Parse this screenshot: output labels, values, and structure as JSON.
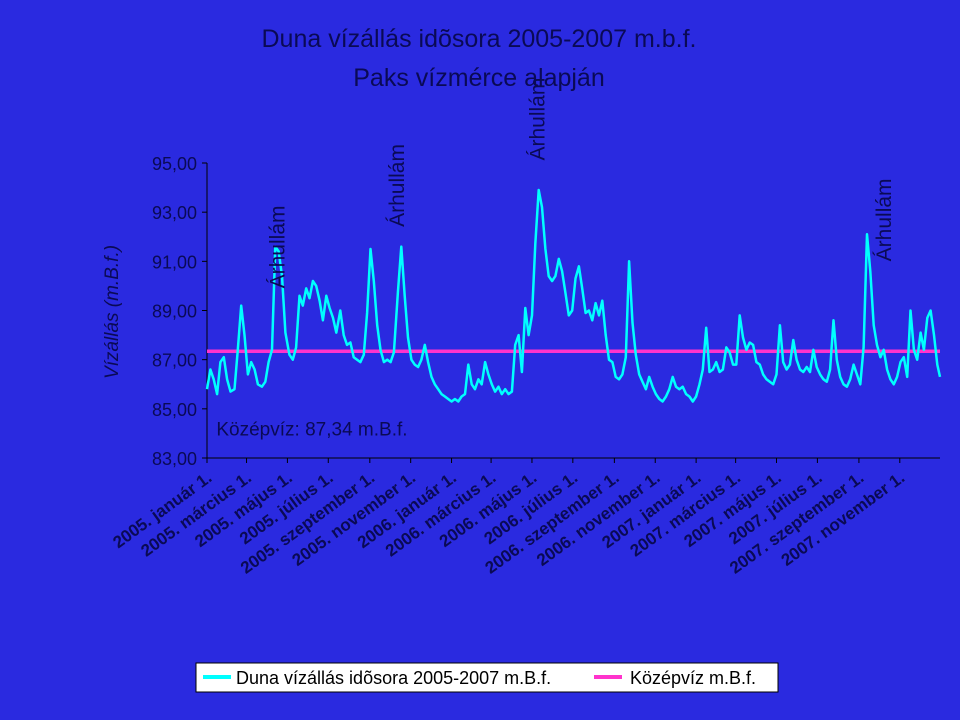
{
  "chart_data": {
    "type": "line",
    "title": "Duna vízállás idõsora 2005-2007 m.b.f.",
    "subtitle": "Paks vízmérce alapján",
    "ylabel": "Vízállás (m.B.f.)",
    "xlabel": "",
    "ylim": [
      83,
      95
    ],
    "y_ticks": [
      83,
      85,
      87,
      89,
      91,
      93,
      95
    ],
    "y_tick_labels": [
      "83,00",
      "85,00",
      "87,00",
      "89,00",
      "91,00",
      "93,00",
      "95,00"
    ],
    "x_range": [
      "2005-01-01",
      "2007-12-31"
    ],
    "x_tick_labels": [
      {
        "date": "2005-01-01",
        "label": "2005. január 1."
      },
      {
        "date": "2005-03-01",
        "label": "2005. március 1."
      },
      {
        "date": "2005-05-01",
        "label": "2005. május 1."
      },
      {
        "date": "2005-07-01",
        "label": "2005. július 1."
      },
      {
        "date": "2005-09-01",
        "label": "2005. szeptember 1."
      },
      {
        "date": "2005-11-01",
        "label": "2005. november 1."
      },
      {
        "date": "2006-01-01",
        "label": "2006. január 1."
      },
      {
        "date": "2006-03-01",
        "label": "2006. március 1."
      },
      {
        "date": "2006-05-01",
        "label": "2006. május 1."
      },
      {
        "date": "2006-07-01",
        "label": "2006. július 1."
      },
      {
        "date": "2006-09-01",
        "label": "2006. szeptember 1."
      },
      {
        "date": "2006-11-01",
        "label": "2006. november 1."
      },
      {
        "date": "2007-01-01",
        "label": "2007. január 1."
      },
      {
        "date": "2007-03-01",
        "label": "2007. március 1."
      },
      {
        "date": "2007-05-01",
        "label": "2007. május 1."
      },
      {
        "date": "2007-07-01",
        "label": "2007. július 1."
      },
      {
        "date": "2007-09-01",
        "label": "2007. szeptember 1."
      },
      {
        "date": "2007-11-01",
        "label": "2007. november 1."
      }
    ],
    "grid": false,
    "legend_position": "bottom",
    "series": [
      {
        "name": "Duna vízállás idõsora 2005-2007 m.B.f.",
        "color": "#00ffff",
        "points": [
          [
            "2005-01-01",
            85.8
          ],
          [
            "2005-01-06",
            86.6
          ],
          [
            "2005-01-11",
            86.2
          ],
          [
            "2005-01-16",
            85.6
          ],
          [
            "2005-01-21",
            86.9
          ],
          [
            "2005-01-26",
            87.1
          ],
          [
            "2005-01-31",
            86.2
          ],
          [
            "2005-02-05",
            85.7
          ],
          [
            "2005-02-11",
            85.8
          ],
          [
            "2005-02-16",
            87.4
          ],
          [
            "2005-02-21",
            89.2
          ],
          [
            "2005-02-26",
            88.0
          ],
          [
            "2005-03-03",
            86.4
          ],
          [
            "2005-03-08",
            86.9
          ],
          [
            "2005-03-13",
            86.6
          ],
          [
            "2005-03-18",
            86.0
          ],
          [
            "2005-03-24",
            85.9
          ],
          [
            "2005-03-29",
            86.1
          ],
          [
            "2005-04-03",
            86.9
          ],
          [
            "2005-04-08",
            87.4
          ],
          [
            "2005-04-13",
            91.6
          ],
          [
            "2005-04-18",
            91.4
          ],
          [
            "2005-04-23",
            90.4
          ],
          [
            "2005-04-28",
            88.1
          ],
          [
            "2005-05-04",
            87.2
          ],
          [
            "2005-05-09",
            87.0
          ],
          [
            "2005-05-14",
            87.5
          ],
          [
            "2005-05-19",
            89.6
          ],
          [
            "2005-05-24",
            89.2
          ],
          [
            "2005-05-29",
            89.9
          ],
          [
            "2005-06-03",
            89.5
          ],
          [
            "2005-06-08",
            90.2
          ],
          [
            "2005-06-13",
            90.0
          ],
          [
            "2005-06-18",
            89.4
          ],
          [
            "2005-06-23",
            88.6
          ],
          [
            "2005-06-28",
            89.6
          ],
          [
            "2005-07-03",
            89.1
          ],
          [
            "2005-07-08",
            88.7
          ],
          [
            "2005-07-13",
            88.1
          ],
          [
            "2005-07-19",
            89.0
          ],
          [
            "2005-07-24",
            88.0
          ],
          [
            "2005-07-29",
            87.6
          ],
          [
            "2005-08-03",
            87.7
          ],
          [
            "2005-08-08",
            87.1
          ],
          [
            "2005-08-13",
            87.0
          ],
          [
            "2005-08-18",
            86.9
          ],
          [
            "2005-08-23",
            87.2
          ],
          [
            "2005-08-28",
            88.9
          ],
          [
            "2005-09-02",
            91.5
          ],
          [
            "2005-09-07",
            90.2
          ],
          [
            "2005-09-12",
            88.4
          ],
          [
            "2005-09-17",
            87.4
          ],
          [
            "2005-09-22",
            86.9
          ],
          [
            "2005-09-27",
            87.0
          ],
          [
            "2005-10-02",
            86.9
          ],
          [
            "2005-10-07",
            87.3
          ],
          [
            "2005-10-13",
            89.8
          ],
          [
            "2005-10-18",
            91.6
          ],
          [
            "2005-10-23",
            89.6
          ],
          [
            "2005-10-28",
            87.9
          ],
          [
            "2005-11-02",
            87.0
          ],
          [
            "2005-11-07",
            86.8
          ],
          [
            "2005-11-12",
            86.7
          ],
          [
            "2005-11-17",
            87.0
          ],
          [
            "2005-11-22",
            87.6
          ],
          [
            "2005-11-27",
            86.9
          ],
          [
            "2005-12-02",
            86.3
          ],
          [
            "2005-12-07",
            86.0
          ],
          [
            "2005-12-12",
            85.8
          ],
          [
            "2005-12-17",
            85.6
          ],
          [
            "2005-12-22",
            85.5
          ],
          [
            "2005-12-27",
            85.4
          ],
          [
            "2006-01-01",
            85.3
          ],
          [
            "2006-01-06",
            85.4
          ],
          [
            "2006-01-11",
            85.3
          ],
          [
            "2006-01-16",
            85.5
          ],
          [
            "2006-01-21",
            85.6
          ],
          [
            "2006-01-26",
            86.8
          ],
          [
            "2006-01-31",
            86.0
          ],
          [
            "2006-02-05",
            85.8
          ],
          [
            "2006-02-10",
            86.2
          ],
          [
            "2006-02-15",
            86.0
          ],
          [
            "2006-02-20",
            86.9
          ],
          [
            "2006-02-25",
            86.4
          ],
          [
            "2006-03-02",
            86.0
          ],
          [
            "2006-03-07",
            85.7
          ],
          [
            "2006-03-12",
            85.9
          ],
          [
            "2006-03-17",
            85.6
          ],
          [
            "2006-03-22",
            85.8
          ],
          [
            "2006-03-27",
            85.6
          ],
          [
            "2006-04-01",
            85.7
          ],
          [
            "2006-04-06",
            87.6
          ],
          [
            "2006-04-11",
            88.0
          ],
          [
            "2006-04-16",
            86.5
          ],
          [
            "2006-04-21",
            89.1
          ],
          [
            "2006-04-26",
            88.0
          ],
          [
            "2006-05-01",
            88.8
          ],
          [
            "2006-05-06",
            91.7
          ],
          [
            "2006-05-11",
            93.9
          ],
          [
            "2006-05-16",
            93.2
          ],
          [
            "2006-05-21",
            91.5
          ],
          [
            "2006-05-26",
            90.4
          ],
          [
            "2006-05-31",
            90.2
          ],
          [
            "2006-06-05",
            90.4
          ],
          [
            "2006-06-10",
            91.1
          ],
          [
            "2006-06-15",
            90.6
          ],
          [
            "2006-06-20",
            89.7
          ],
          [
            "2006-06-25",
            88.8
          ],
          [
            "2006-06-30",
            89.0
          ],
          [
            "2006-07-05",
            90.3
          ],
          [
            "2006-07-10",
            90.8
          ],
          [
            "2006-07-15",
            89.9
          ],
          [
            "2006-07-20",
            88.9
          ],
          [
            "2006-07-25",
            89.0
          ],
          [
            "2006-07-30",
            88.6
          ],
          [
            "2006-08-04",
            89.3
          ],
          [
            "2006-08-09",
            88.8
          ],
          [
            "2006-08-14",
            89.4
          ],
          [
            "2006-08-19",
            88.0
          ],
          [
            "2006-08-24",
            87.0
          ],
          [
            "2006-08-29",
            86.9
          ],
          [
            "2006-09-03",
            86.3
          ],
          [
            "2006-09-08",
            86.2
          ],
          [
            "2006-09-13",
            86.4
          ],
          [
            "2006-09-18",
            87.1
          ],
          [
            "2006-09-23",
            91.0
          ],
          [
            "2006-09-28",
            88.5
          ],
          [
            "2006-10-03",
            87.2
          ],
          [
            "2006-10-08",
            86.4
          ],
          [
            "2006-10-13",
            86.1
          ],
          [
            "2006-10-18",
            85.8
          ],
          [
            "2006-10-23",
            86.3
          ],
          [
            "2006-10-28",
            85.9
          ],
          [
            "2006-11-02",
            85.6
          ],
          [
            "2006-11-07",
            85.4
          ],
          [
            "2006-11-12",
            85.3
          ],
          [
            "2006-11-17",
            85.5
          ],
          [
            "2006-11-22",
            85.8
          ],
          [
            "2006-11-27",
            86.3
          ],
          [
            "2006-12-02",
            85.9
          ],
          [
            "2006-12-07",
            85.8
          ],
          [
            "2006-12-12",
            85.9
          ],
          [
            "2006-12-17",
            85.6
          ],
          [
            "2006-12-22",
            85.5
          ],
          [
            "2006-12-27",
            85.3
          ],
          [
            "2007-01-01",
            85.5
          ],
          [
            "2007-01-06",
            86.0
          ],
          [
            "2007-01-11",
            86.6
          ],
          [
            "2007-01-16",
            88.3
          ],
          [
            "2007-01-21",
            86.5
          ],
          [
            "2007-01-26",
            86.6
          ],
          [
            "2007-01-31",
            86.9
          ],
          [
            "2007-02-05",
            86.5
          ],
          [
            "2007-02-10",
            86.6
          ],
          [
            "2007-02-15",
            87.5
          ],
          [
            "2007-02-20",
            87.3
          ],
          [
            "2007-02-25",
            86.8
          ],
          [
            "2007-03-02",
            86.8
          ],
          [
            "2007-03-07",
            88.8
          ],
          [
            "2007-03-12",
            87.9
          ],
          [
            "2007-03-17",
            87.4
          ],
          [
            "2007-03-22",
            87.7
          ],
          [
            "2007-03-27",
            87.6
          ],
          [
            "2007-04-01",
            86.9
          ],
          [
            "2007-04-06",
            86.8
          ],
          [
            "2007-04-11",
            86.4
          ],
          [
            "2007-04-16",
            86.2
          ],
          [
            "2007-04-21",
            86.1
          ],
          [
            "2007-04-26",
            86.0
          ],
          [
            "2007-05-01",
            86.4
          ],
          [
            "2007-05-06",
            88.4
          ],
          [
            "2007-05-11",
            86.9
          ],
          [
            "2007-05-16",
            86.6
          ],
          [
            "2007-05-21",
            86.8
          ],
          [
            "2007-05-26",
            87.8
          ],
          [
            "2007-05-31",
            87.0
          ],
          [
            "2007-06-05",
            86.6
          ],
          [
            "2007-06-10",
            86.5
          ],
          [
            "2007-06-15",
            86.7
          ],
          [
            "2007-06-20",
            86.5
          ],
          [
            "2007-06-25",
            87.4
          ],
          [
            "2007-06-30",
            86.7
          ],
          [
            "2007-07-05",
            86.4
          ],
          [
            "2007-07-10",
            86.2
          ],
          [
            "2007-07-15",
            86.1
          ],
          [
            "2007-07-20",
            86.6
          ],
          [
            "2007-07-25",
            88.6
          ],
          [
            "2007-07-30",
            87.0
          ],
          [
            "2007-08-04",
            86.3
          ],
          [
            "2007-08-09",
            86.0
          ],
          [
            "2007-08-14",
            85.9
          ],
          [
            "2007-08-19",
            86.2
          ],
          [
            "2007-08-24",
            86.8
          ],
          [
            "2007-08-29",
            86.4
          ],
          [
            "2007-09-03",
            86.0
          ],
          [
            "2007-09-08",
            87.5
          ],
          [
            "2007-09-13",
            92.1
          ],
          [
            "2007-09-18",
            90.6
          ],
          [
            "2007-09-23",
            88.4
          ],
          [
            "2007-09-28",
            87.6
          ],
          [
            "2007-10-03",
            87.1
          ],
          [
            "2007-10-08",
            87.4
          ],
          [
            "2007-10-13",
            86.6
          ],
          [
            "2007-10-18",
            86.2
          ],
          [
            "2007-10-23",
            86.0
          ],
          [
            "2007-10-28",
            86.3
          ],
          [
            "2007-11-02",
            86.9
          ],
          [
            "2007-11-07",
            87.1
          ],
          [
            "2007-11-12",
            86.3
          ],
          [
            "2007-11-17",
            89.0
          ],
          [
            "2007-11-22",
            87.4
          ],
          [
            "2007-11-27",
            87.0
          ],
          [
            "2007-12-02",
            88.1
          ],
          [
            "2007-12-07",
            87.4
          ],
          [
            "2007-12-12",
            88.7
          ],
          [
            "2007-12-17",
            89.0
          ],
          [
            "2007-12-22",
            88.0
          ],
          [
            "2007-12-27",
            86.8
          ],
          [
            "2007-12-31",
            86.3
          ]
        ]
      },
      {
        "name": "Középvíz m.B.f.",
        "color": "#ff33cc",
        "constant": 87.34,
        "points": [
          [
            "2005-01-01",
            87.34
          ],
          [
            "2007-12-31",
            87.34
          ]
        ]
      }
    ],
    "annotations": [
      {
        "text": "Árhullám",
        "date": "2005-04-15",
        "value": 89.9
      },
      {
        "text": "Árhullám",
        "date": "2005-10-10",
        "value": 92.4
      },
      {
        "text": "Árhullám",
        "date": "2006-05-08",
        "value": 95.1
      },
      {
        "text": "Árhullám",
        "date": "2007-10-07",
        "value": 91.0
      }
    ],
    "mean_label": {
      "text": "Középvíz: 87,34 m.B.f.",
      "date": "2005-01-15",
      "value": 84.2
    }
  }
}
